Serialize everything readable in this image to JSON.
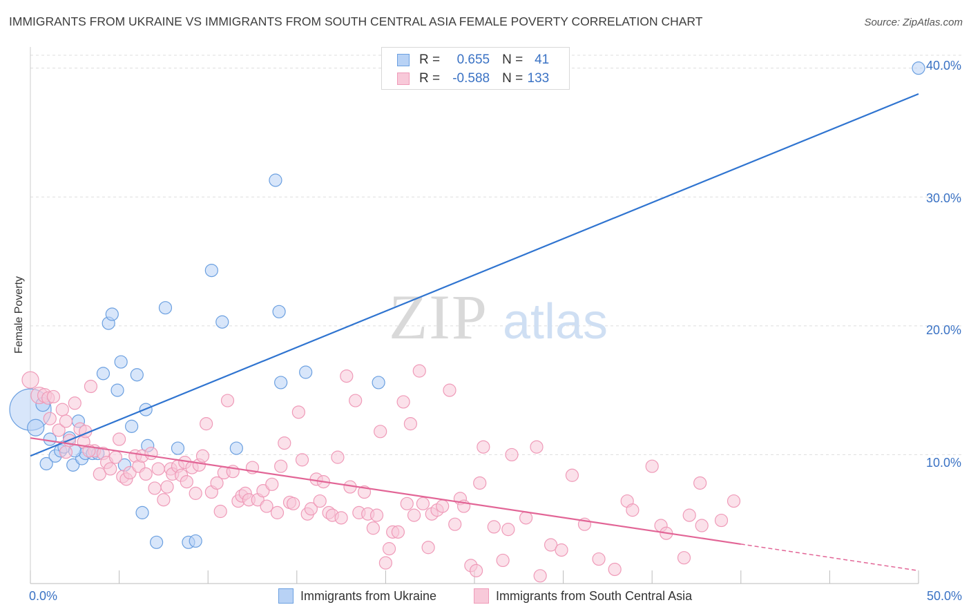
{
  "chart_data": {
    "type": "scatter",
    "title": "IMMIGRANTS FROM UKRAINE VS IMMIGRANTS FROM SOUTH CENTRAL ASIA FEMALE POVERTY CORRELATION CHART",
    "source": "Source: ZipAtlas.com",
    "watermark": {
      "zip": "ZIP",
      "atlas": "atlas"
    },
    "xlabel": "",
    "ylabel": "Female Poverty",
    "xlim": [
      0,
      50
    ],
    "ylim": [
      0,
      41
    ],
    "x_tick_labels": [
      "0.0%",
      "50.0%"
    ],
    "y_ticks": [
      10,
      20,
      30,
      40
    ],
    "y_tick_labels": [
      "10.0%",
      "20.0%",
      "30.0%",
      "40.0%"
    ],
    "legend": {
      "r_label": "R =",
      "n_label": "N =",
      "entries": [
        {
          "r": "0.655",
          "n": "41"
        },
        {
          "r": "-0.588",
          "n": "133"
        }
      ]
    },
    "series": [
      {
        "name": "Immigrants from Ukraine",
        "color": "#6a9fe0",
        "fill": "#b8d2f5",
        "line_color": "#2f74d0",
        "trend": {
          "x0": 0,
          "y0": 9.9,
          "x1": 50,
          "y1": 38.0,
          "solid_until": 50
        },
        "points": [
          [
            0.0,
            13.5,
            30
          ],
          [
            0.3,
            12.1,
            12
          ],
          [
            0.7,
            13.9,
            10
          ],
          [
            0.9,
            9.3,
            9
          ],
          [
            1.1,
            11.2,
            9
          ],
          [
            1.4,
            9.9,
            9
          ],
          [
            1.7,
            10.3,
            9
          ],
          [
            1.9,
            10.6,
            9
          ],
          [
            2.2,
            11.3,
            9
          ],
          [
            2.4,
            9.2,
            9
          ],
          [
            2.7,
            12.6,
            9
          ],
          [
            2.9,
            9.7,
            9
          ],
          [
            3.1,
            10.1,
            9
          ],
          [
            3.5,
            10.1,
            9
          ],
          [
            3.8,
            10.1,
            9
          ],
          [
            4.1,
            16.3,
            9
          ],
          [
            4.4,
            20.2,
            9
          ],
          [
            4.6,
            20.9,
            9
          ],
          [
            4.9,
            15.0,
            9
          ],
          [
            5.1,
            17.2,
            9
          ],
          [
            5.3,
            9.2,
            9
          ],
          [
            5.7,
            12.2,
            9
          ],
          [
            6.0,
            16.2,
            9
          ],
          [
            6.3,
            5.5,
            9
          ],
          [
            6.5,
            13.5,
            9
          ],
          [
            6.6,
            10.7,
            9
          ],
          [
            7.1,
            3.2,
            9
          ],
          [
            7.6,
            21.4,
            9
          ],
          [
            8.3,
            10.5,
            9
          ],
          [
            8.9,
            3.2,
            9
          ],
          [
            9.3,
            3.3,
            9
          ],
          [
            10.2,
            24.3,
            9
          ],
          [
            10.8,
            20.3,
            9
          ],
          [
            11.6,
            10.5,
            9
          ],
          [
            13.8,
            31.3,
            9
          ],
          [
            14.0,
            21.1,
            9
          ],
          [
            14.1,
            15.6,
            9
          ],
          [
            15.5,
            16.4,
            9
          ],
          [
            19.6,
            15.6,
            9
          ],
          [
            50.0,
            40.0,
            9
          ],
          [
            2.5,
            10.3,
            9
          ]
        ]
      },
      {
        "name": "Immigrants from South Central Asia",
        "color": "#ef9ab8",
        "fill": "#f8c9d9",
        "line_color": "#e26596",
        "trend": {
          "x0": 0,
          "y0": 11.3,
          "x1": 50,
          "y1": 1.0,
          "solid_until": 40
        },
        "points": [
          [
            0.0,
            15.8,
            12
          ],
          [
            0.5,
            14.6,
            12
          ],
          [
            0.8,
            14.6,
            10
          ],
          [
            1.0,
            14.4,
            9
          ],
          [
            1.1,
            12.8,
            9
          ],
          [
            1.3,
            14.5,
            9
          ],
          [
            1.6,
            11.9,
            9
          ],
          [
            1.8,
            13.5,
            9
          ],
          [
            2.0,
            12.6,
            9
          ],
          [
            2.2,
            11.1,
            9
          ],
          [
            2.5,
            14.0,
            9
          ],
          [
            2.8,
            12.0,
            9
          ],
          [
            3.0,
            11.0,
            9
          ],
          [
            3.1,
            11.8,
            9
          ],
          [
            3.4,
            15.3,
            9
          ],
          [
            3.6,
            10.3,
            9
          ],
          [
            3.9,
            8.5,
            9
          ],
          [
            4.1,
            10.1,
            9
          ],
          [
            4.3,
            9.4,
            9
          ],
          [
            4.5,
            8.9,
            9
          ],
          [
            4.8,
            9.8,
            9
          ],
          [
            5.0,
            11.2,
            9
          ],
          [
            5.2,
            8.3,
            9
          ],
          [
            5.4,
            8.1,
            9
          ],
          [
            5.6,
            8.6,
            9
          ],
          [
            5.9,
            9.9,
            9
          ],
          [
            6.1,
            9.1,
            9
          ],
          [
            6.3,
            9.9,
            9
          ],
          [
            6.5,
            8.5,
            9
          ],
          [
            6.8,
            10.1,
            9
          ],
          [
            7.0,
            7.4,
            9
          ],
          [
            7.2,
            8.9,
            9
          ],
          [
            7.5,
            6.5,
            9
          ],
          [
            7.7,
            7.5,
            9
          ],
          [
            7.9,
            8.9,
            9
          ],
          [
            8.0,
            8.5,
            9
          ],
          [
            8.3,
            9.1,
            9
          ],
          [
            8.5,
            8.4,
            9
          ],
          [
            8.7,
            9.4,
            9
          ],
          [
            8.8,
            7.9,
            9
          ],
          [
            9.1,
            9.0,
            9
          ],
          [
            9.3,
            7.0,
            9
          ],
          [
            9.5,
            9.2,
            9
          ],
          [
            9.7,
            9.9,
            9
          ],
          [
            9.9,
            12.4,
            9
          ],
          [
            10.2,
            7.1,
            9
          ],
          [
            10.5,
            7.8,
            9
          ],
          [
            10.7,
            5.6,
            9
          ],
          [
            10.9,
            8.6,
            9
          ],
          [
            11.1,
            14.2,
            9
          ],
          [
            11.4,
            8.7,
            9
          ],
          [
            11.7,
            6.4,
            9
          ],
          [
            11.9,
            6.8,
            9
          ],
          [
            12.1,
            7.0,
            9
          ],
          [
            12.3,
            6.5,
            9
          ],
          [
            12.5,
            9.0,
            9
          ],
          [
            12.8,
            6.5,
            9
          ],
          [
            13.1,
            7.2,
            9
          ],
          [
            13.3,
            6.0,
            9
          ],
          [
            13.6,
            7.7,
            9
          ],
          [
            13.9,
            5.5,
            9
          ],
          [
            14.1,
            9.1,
            9
          ],
          [
            14.3,
            10.9,
            9
          ],
          [
            14.6,
            6.3,
            9
          ],
          [
            14.8,
            6.2,
            9
          ],
          [
            15.1,
            13.3,
            9
          ],
          [
            15.3,
            9.6,
            9
          ],
          [
            15.6,
            5.4,
            9
          ],
          [
            15.8,
            5.8,
            9
          ],
          [
            16.1,
            8.1,
            9
          ],
          [
            16.3,
            6.4,
            9
          ],
          [
            16.5,
            7.9,
            9
          ],
          [
            16.8,
            5.5,
            9
          ],
          [
            17.0,
            5.3,
            9
          ],
          [
            17.3,
            9.8,
            9
          ],
          [
            17.5,
            5.1,
            9
          ],
          [
            17.8,
            16.1,
            9
          ],
          [
            18.0,
            7.5,
            9
          ],
          [
            18.3,
            14.2,
            9
          ],
          [
            18.5,
            5.5,
            9
          ],
          [
            18.8,
            7.1,
            9
          ],
          [
            19.0,
            5.4,
            9
          ],
          [
            19.3,
            4.3,
            9
          ],
          [
            19.5,
            5.3,
            9
          ],
          [
            19.7,
            11.8,
            9
          ],
          [
            20.0,
            1.6,
            9
          ],
          [
            20.2,
            2.7,
            9
          ],
          [
            20.4,
            4.0,
            9
          ],
          [
            20.7,
            4.0,
            9
          ],
          [
            21.0,
            14.1,
            9
          ],
          [
            21.2,
            6.2,
            9
          ],
          [
            21.4,
            12.4,
            9
          ],
          [
            21.6,
            5.3,
            9
          ],
          [
            21.9,
            16.5,
            9
          ],
          [
            22.1,
            6.2,
            9
          ],
          [
            22.4,
            2.8,
            9
          ],
          [
            22.6,
            5.4,
            9
          ],
          [
            22.9,
            5.7,
            9
          ],
          [
            23.2,
            6.0,
            9
          ],
          [
            23.6,
            15.0,
            9
          ],
          [
            23.9,
            4.6,
            9
          ],
          [
            24.2,
            6.6,
            9
          ],
          [
            24.4,
            6.0,
            9
          ],
          [
            24.8,
            1.4,
            9
          ],
          [
            25.1,
            1.0,
            9
          ],
          [
            25.3,
            7.8,
            9
          ],
          [
            25.5,
            10.6,
            9
          ],
          [
            26.1,
            4.4,
            9
          ],
          [
            26.6,
            1.8,
            9
          ],
          [
            26.9,
            4.2,
            9
          ],
          [
            27.1,
            10.0,
            9
          ],
          [
            27.9,
            5.1,
            9
          ],
          [
            28.5,
            10.6,
            9
          ],
          [
            28.7,
            0.6,
            9
          ],
          [
            29.3,
            3.0,
            9
          ],
          [
            29.9,
            2.6,
            9
          ],
          [
            30.5,
            8.4,
            9
          ],
          [
            31.2,
            4.6,
            9
          ],
          [
            32.0,
            1.9,
            9
          ],
          [
            32.9,
            1.1,
            9
          ],
          [
            33.6,
            6.4,
            9
          ],
          [
            33.9,
            5.7,
            9
          ],
          [
            35.0,
            9.1,
            9
          ],
          [
            35.5,
            4.5,
            9
          ],
          [
            35.8,
            3.9,
            9
          ],
          [
            36.8,
            2.0,
            9
          ],
          [
            37.1,
            5.3,
            9
          ],
          [
            37.7,
            7.8,
            9
          ],
          [
            37.8,
            4.5,
            9
          ],
          [
            38.9,
            4.9,
            9
          ],
          [
            39.6,
            6.4,
            9
          ],
          [
            2.0,
            10.2,
            9
          ],
          [
            3.3,
            10.3,
            9
          ]
        ]
      }
    ]
  }
}
